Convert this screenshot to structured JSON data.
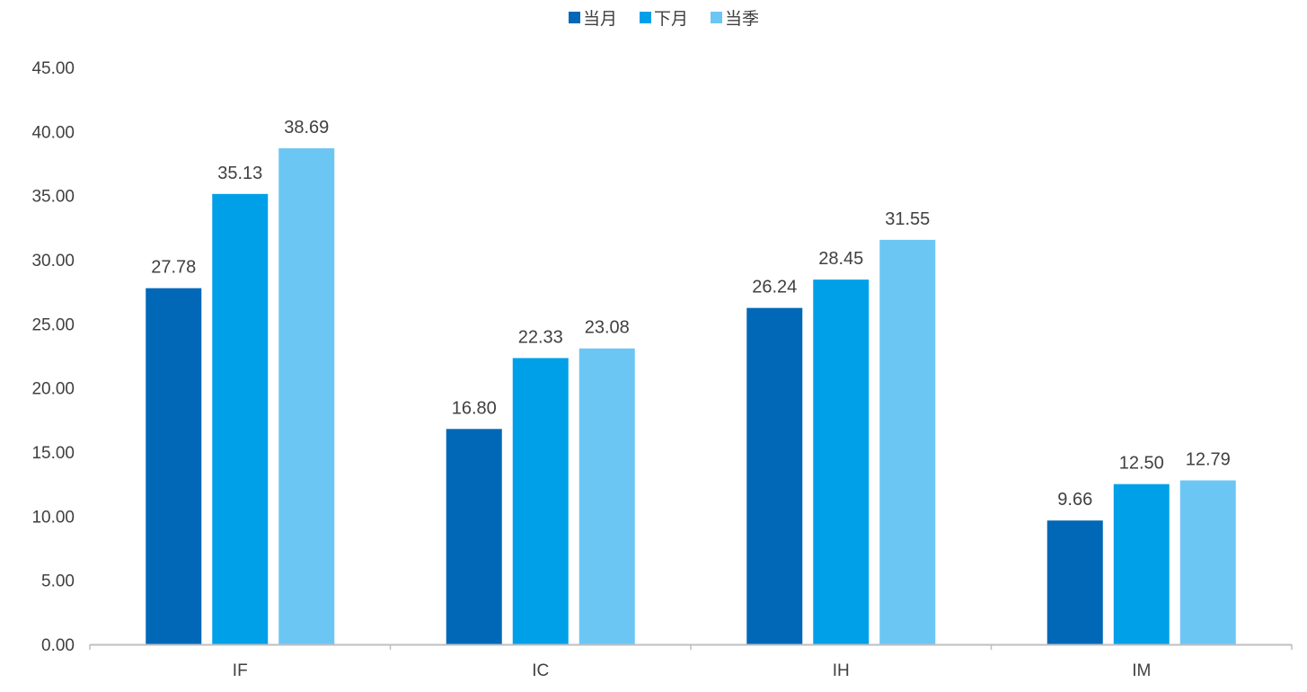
{
  "chart_data": {
    "type": "bar",
    "categories": [
      "IF",
      "IC",
      "IH",
      "IM"
    ],
    "series": [
      {
        "name": "当月",
        "color": "#0068B7",
        "values": [
          27.78,
          16.8,
          26.24,
          9.66
        ],
        "labels": [
          "27.78",
          "16.80",
          "26.24",
          "9.66"
        ]
      },
      {
        "name": "下月",
        "color": "#00A0E9",
        "values": [
          35.13,
          22.33,
          28.45,
          12.5
        ],
        "labels": [
          "35.13",
          "22.33",
          "28.45",
          "12.50"
        ]
      },
      {
        "name": "当季",
        "color": "#6CC6F4",
        "values": [
          38.69,
          23.08,
          31.55,
          12.79
        ],
        "labels": [
          "38.69",
          "23.08",
          "31.55",
          "12.79"
        ]
      }
    ],
    "y_ticks": [
      "0.00",
      "5.00",
      "10.00",
      "15.00",
      "20.00",
      "25.00",
      "30.00",
      "35.00",
      "40.00",
      "45.00"
    ],
    "ylim": [
      0,
      45
    ],
    "grid": false,
    "legend_position": "top-center",
    "title": "",
    "xlabel": "",
    "ylabel": ""
  }
}
